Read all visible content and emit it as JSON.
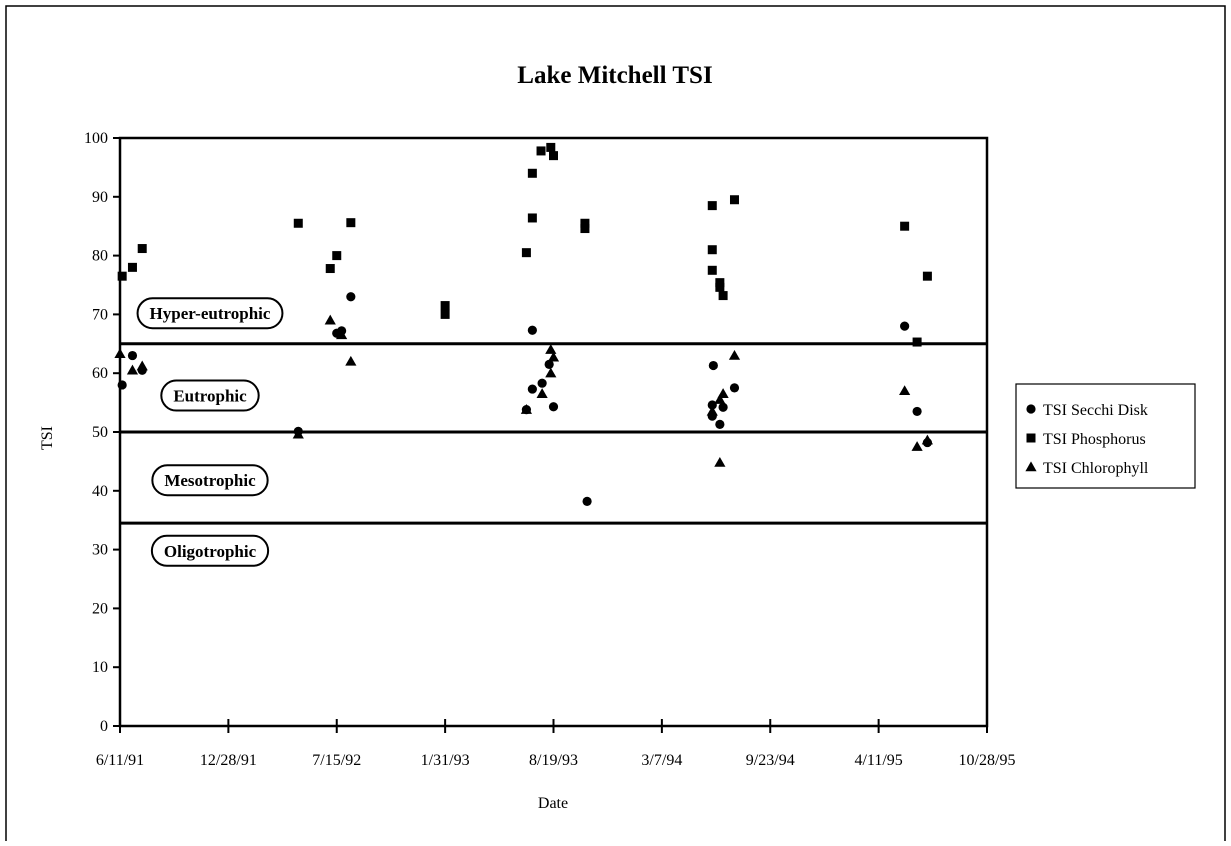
{
  "chart_data": {
    "type": "scatter",
    "title": "Lake Mitchell TSI",
    "xlabel": "Date",
    "ylabel": "TSI",
    "x_axis": {
      "type": "date",
      "range": [
        "1991-06-11",
        "1995-10-28"
      ],
      "tick_dates": [
        "1991-06-11",
        "1991-12-28",
        "1992-07-15",
        "1993-01-31",
        "1993-08-19",
        "1994-03-07",
        "1994-09-23",
        "1995-04-11",
        "1995-10-28"
      ],
      "tick_labels": [
        "6/11/91",
        "12/28/91",
        "7/15/92",
        "1/31/93",
        "8/19/93",
        "3/7/94",
        "9/23/94",
        "4/11/95",
        "10/28/95"
      ]
    },
    "y_axis": {
      "range": [
        0,
        100
      ],
      "ticks": [
        0,
        10,
        20,
        30,
        40,
        50,
        60,
        70,
        80,
        90,
        100
      ]
    },
    "grid": false,
    "legend_position": "right",
    "zones": [
      {
        "label": "Hyper-eutrophic",
        "label_y": 70.2
      },
      {
        "label": "Eutrophic",
        "label_y": 56.2
      },
      {
        "label": "Mesotrophic",
        "label_y": 41.8
      },
      {
        "label": "Oligotrophic",
        "label_y": 29.8
      }
    ],
    "thresholds": [
      65,
      50,
      34.5
    ],
    "series": [
      {
        "name": "TSI Secchi Disk",
        "marker": "circle",
        "points": [
          {
            "x": "1991-06-15",
            "y": 58
          },
          {
            "x": "1991-07-04",
            "y": 63
          },
          {
            "x": "1991-07-22",
            "y": 60.5
          },
          {
            "x": "1992-05-05",
            "y": 50.1
          },
          {
            "x": "1992-07-15",
            "y": 66.8
          },
          {
            "x": "1992-07-24",
            "y": 67.2
          },
          {
            "x": "1992-08-10",
            "y": 73
          },
          {
            "x": "1993-06-30",
            "y": 53.8
          },
          {
            "x": "1993-07-11",
            "y": 57.3
          },
          {
            "x": "1993-07-11",
            "y": 67.3
          },
          {
            "x": "1993-07-29",
            "y": 58.3
          },
          {
            "x": "1993-08-11",
            "y": 61.5
          },
          {
            "x": "1993-08-19",
            "y": 54.3
          },
          {
            "x": "1993-10-20",
            "y": 38.2
          },
          {
            "x": "1994-06-10",
            "y": 61.3
          },
          {
            "x": "1994-06-08",
            "y": 54.6
          },
          {
            "x": "1994-06-08",
            "y": 52.7
          },
          {
            "x": "1994-06-22",
            "y": 51.3
          },
          {
            "x": "1994-06-28",
            "y": 54.2
          },
          {
            "x": "1994-07-19",
            "y": 57.5
          },
          {
            "x": "1995-05-29",
            "y": 68
          },
          {
            "x": "1995-06-21",
            "y": 53.5
          },
          {
            "x": "1995-07-10",
            "y": 48.2
          }
        ]
      },
      {
        "name": "TSI Phosphorus",
        "marker": "square",
        "points": [
          {
            "x": "1991-06-15",
            "y": 76.5
          },
          {
            "x": "1991-07-04",
            "y": 78
          },
          {
            "x": "1991-07-22",
            "y": 81.2
          },
          {
            "x": "1992-05-05",
            "y": 85.5
          },
          {
            "x": "1992-07-03",
            "y": 77.8
          },
          {
            "x": "1992-07-15",
            "y": 80
          },
          {
            "x": "1992-08-10",
            "y": 85.6
          },
          {
            "x": "1993-01-31",
            "y": 71.5
          },
          {
            "x": "1993-01-31",
            "y": 70
          },
          {
            "x": "1993-06-30",
            "y": 80.5
          },
          {
            "x": "1993-07-11",
            "y": 86.4
          },
          {
            "x": "1993-07-11",
            "y": 94
          },
          {
            "x": "1993-07-27",
            "y": 97.8
          },
          {
            "x": "1993-08-14",
            "y": 98.4
          },
          {
            "x": "1993-08-19",
            "y": 97
          },
          {
            "x": "1993-10-16",
            "y": 85.5
          },
          {
            "x": "1993-10-16",
            "y": 84.6
          },
          {
            "x": "1994-06-08",
            "y": 88.5
          },
          {
            "x": "1994-06-08",
            "y": 81
          },
          {
            "x": "1994-06-08",
            "y": 77.5
          },
          {
            "x": "1994-06-22",
            "y": 75.4
          },
          {
            "x": "1994-06-22",
            "y": 74.6
          },
          {
            "x": "1994-06-28",
            "y": 73.2
          },
          {
            "x": "1994-07-19",
            "y": 89.5
          },
          {
            "x": "1995-05-29",
            "y": 85
          },
          {
            "x": "1995-06-21",
            "y": 65.3
          },
          {
            "x": "1995-07-10",
            "y": 76.5
          }
        ]
      },
      {
        "name": "TSI Chlorophyll",
        "marker": "triangle",
        "points": [
          {
            "x": "1991-06-11",
            "y": 63.3
          },
          {
            "x": "1991-07-04",
            "y": 60.5
          },
          {
            "x": "1991-07-22",
            "y": 61.2
          },
          {
            "x": "1992-05-05",
            "y": 49.6
          },
          {
            "x": "1992-07-03",
            "y": 69
          },
          {
            "x": "1992-07-24",
            "y": 66.5
          },
          {
            "x": "1992-08-10",
            "y": 62
          },
          {
            "x": "1993-06-30",
            "y": 53.8
          },
          {
            "x": "1993-07-29",
            "y": 56.5
          },
          {
            "x": "1993-08-14",
            "y": 64
          },
          {
            "x": "1993-08-14",
            "y": 60
          },
          {
            "x": "1993-08-19",
            "y": 62.7
          },
          {
            "x": "1994-06-08",
            "y": 53.5
          },
          {
            "x": "1994-06-22",
            "y": 55.5
          },
          {
            "x": "1994-06-22",
            "y": 44.8
          },
          {
            "x": "1994-06-28",
            "y": 56.5
          },
          {
            "x": "1994-07-19",
            "y": 63
          },
          {
            "x": "1995-05-29",
            "y": 57
          },
          {
            "x": "1995-06-21",
            "y": 47.5
          },
          {
            "x": "1995-07-10",
            "y": 48.6
          }
        ]
      }
    ]
  }
}
